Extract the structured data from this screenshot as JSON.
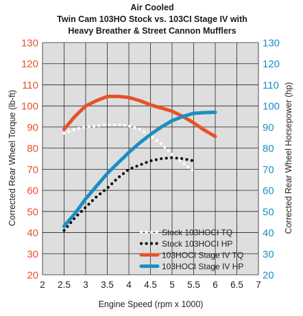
{
  "chart_data": {
    "type": "line",
    "title_lines": [
      "Air Cooled",
      "Twin Cam 103HO Stock vs. 103CI Stage IV with",
      "Heavy Breather & Street Cannon Mufflers"
    ],
    "xlabel": "Engine Speed (rpm x 1000)",
    "ylabel_left": "Corrected Rear Wheel Torque (lb-ft)",
    "ylabel_right": "Corrected Rear Wheel Horsepower (hp)",
    "xlim": [
      2,
      7
    ],
    "ylim": [
      20,
      130
    ],
    "x_ticks": [
      "2",
      "2.5",
      "3",
      "3.5",
      "4",
      "4.5",
      "5",
      "5.5",
      "6",
      "6.5",
      "7"
    ],
    "y_ticks": [
      "20",
      "30",
      "40",
      "50",
      "60",
      "70",
      "80",
      "90",
      "100",
      "110",
      "120",
      "130"
    ],
    "grid": true,
    "legend_position": "bottom-right",
    "colors": {
      "left_axis": "#e8512a",
      "right_axis": "#1a8fc4",
      "plot_bg": "#dedede",
      "grid": "#222222"
    },
    "series": [
      {
        "name": "Stock 103HOCI TQ",
        "color": "#ffffff",
        "style": "dotted-thick",
        "x": [
          2.5,
          2.75,
          3.0,
          3.25,
          3.5,
          3.75,
          4.0,
          4.25,
          4.5,
          4.75,
          5.0,
          5.25,
          5.5
        ],
        "y": [
          87,
          89,
          90,
          90.5,
          91,
          91,
          90.5,
          89,
          86,
          82,
          77,
          73,
          69
        ]
      },
      {
        "name": "Stock 103HOCI HP",
        "color": "#111111",
        "style": "dotted-thick",
        "x": [
          2.5,
          2.75,
          3.0,
          3.25,
          3.5,
          3.75,
          4.0,
          4.25,
          4.5,
          4.75,
          5.0,
          5.25,
          5.5
        ],
        "y": [
          41,
          47,
          52,
          57,
          61,
          66,
          70,
          72,
          74,
          75,
          75.5,
          75,
          74
        ]
      },
      {
        "name": "103HOCI Stage IV TQ",
        "color": "#e8512a",
        "style": "solid",
        "x": [
          2.5,
          2.75,
          3.0,
          3.25,
          3.5,
          3.75,
          4.0,
          4.25,
          4.5,
          4.75,
          5.0,
          5.25,
          5.5,
          5.75,
          6.0
        ],
        "y": [
          89,
          95,
          100,
          102.5,
          104.5,
          104.5,
          104,
          102.5,
          100.5,
          99,
          97.5,
          95,
          92,
          88.5,
          85.5
        ]
      },
      {
        "name": "103HOCI Stage IV HP",
        "color": "#1a8fc4",
        "style": "solid",
        "x": [
          2.5,
          2.75,
          3.0,
          3.25,
          3.5,
          3.75,
          4.0,
          4.25,
          4.5,
          4.75,
          5.0,
          5.25,
          5.5,
          5.75,
          6.0
        ],
        "y": [
          43,
          49,
          56,
          62,
          68,
          73,
          78,
          82.5,
          86.5,
          90,
          93,
          95,
          96.5,
          96.8,
          97
        ]
      }
    ]
  }
}
